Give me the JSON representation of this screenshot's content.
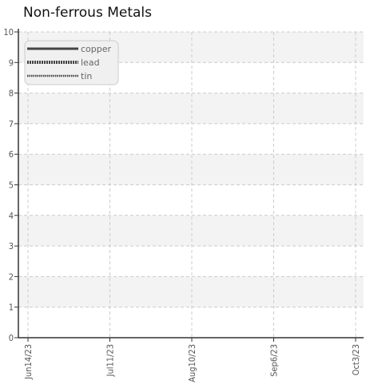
{
  "chart_data": {
    "type": "line",
    "title": "Non-ferrous Metals",
    "xlabel": "",
    "ylabel": "",
    "ylim": [
      0,
      10
    ],
    "y_ticks": [
      0,
      1,
      2,
      3,
      4,
      5,
      6,
      7,
      8,
      9,
      10
    ],
    "x_tick_labels": [
      "Jun14/23",
      "Jul11/23",
      "Aug10/23",
      "Sep6/23",
      "Oct3/23"
    ],
    "grid": true,
    "legend_position": "top-left",
    "series": [
      {
        "name": "copper",
        "style": "solid",
        "values": []
      },
      {
        "name": "lead",
        "style": "dotted",
        "values": []
      },
      {
        "name": "tin",
        "style": "wavy",
        "values": []
      }
    ]
  },
  "colors": {
    "axis": "#333333",
    "grid": "#cccccc",
    "band": "#f3f3f3",
    "legend_bg": "#f0f0f0",
    "series_line": "#444444"
  }
}
